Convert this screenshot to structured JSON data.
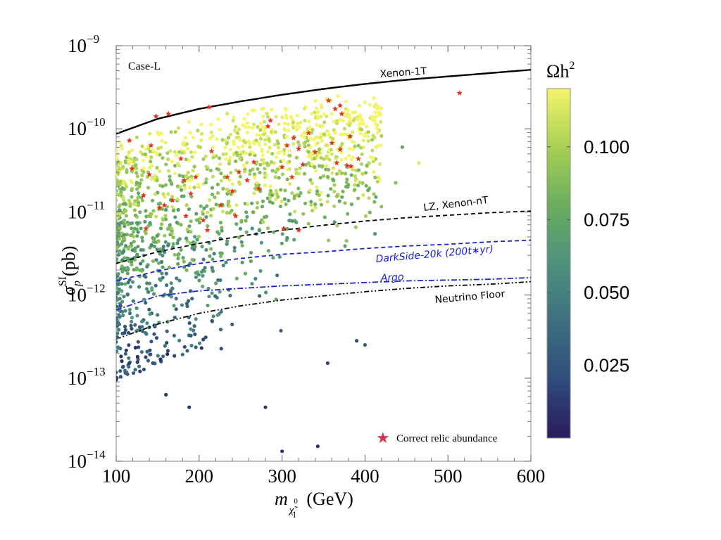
{
  "chart_data": {
    "type": "scatter",
    "panel_label": "Case-L",
    "xlabel": {
      "base": "m",
      "sub": "χ̃",
      "sub_sup": "0",
      "sub_idx": "1",
      "unit": "(GeV)"
    },
    "ylabel": {
      "base": "σ",
      "sub": "p",
      "sup": "SI",
      "unit": "(pb)"
    },
    "xlim": [
      100,
      600
    ],
    "ylim_log10": [
      -14,
      -9
    ],
    "x_ticks": [
      100,
      200,
      300,
      400,
      500,
      600
    ],
    "y_ticks": [
      {
        "exp": -9,
        "base": "10",
        "label": "−9"
      },
      {
        "exp": -10,
        "base": "10",
        "label": "−10"
      },
      {
        "exp": -11,
        "base": "10",
        "label": "−11"
      },
      {
        "exp": -12,
        "base": "10",
        "label": "−12"
      },
      {
        "exp": -13,
        "base": "10",
        "label": "−13"
      },
      {
        "exp": -14,
        "base": "10",
        "label": "−14"
      }
    ],
    "colorbar": {
      "title": "Ωh",
      "title_sup": "2",
      "range": [
        0,
        0.12
      ],
      "ticks": [
        {
          "v": 0.1,
          "label": "0.100"
        },
        {
          "v": 0.075,
          "label": "0.075"
        },
        {
          "v": 0.05,
          "label": "0.050"
        },
        {
          "v": 0.025,
          "label": "0.025"
        }
      ],
      "colormap": [
        "#2a1b5a",
        "#2f4d7a",
        "#3d6f80",
        "#4d917c",
        "#6bae5e",
        "#a6cf54",
        "#f5f56a"
      ]
    },
    "curves": [
      {
        "name": "Xenon-1T",
        "label": "Xenon-1T",
        "color": "#000000",
        "style": "solid",
        "x": [
          100,
          150,
          200,
          250,
          300,
          350,
          400,
          450,
          500,
          550,
          600
        ],
        "log10y": [
          -10.06,
          -9.88,
          -9.76,
          -9.67,
          -9.59,
          -9.52,
          -9.46,
          -9.41,
          -9.37,
          -9.33,
          -9.29
        ]
      },
      {
        "name": "LZ, Xenon-nT",
        "label": "LZ, Xenon-nT",
        "color": "#000000",
        "style": "dashed",
        "x": [
          100,
          150,
          200,
          250,
          300,
          350,
          400,
          450,
          500,
          550,
          600
        ],
        "log10y": [
          -11.62,
          -11.48,
          -11.38,
          -11.29,
          -11.22,
          -11.16,
          -11.11,
          -11.07,
          -11.04,
          -11.01,
          -10.99
        ]
      },
      {
        "name": "DarkSide-20k",
        "label": "DarkSide-20k (200t∗yr)",
        "color": "#1a22d0",
        "style": "dashed",
        "x": [
          100,
          150,
          200,
          250,
          300,
          350,
          400,
          450,
          500,
          550,
          600
        ],
        "log10y": [
          -11.83,
          -11.71,
          -11.62,
          -11.56,
          -11.51,
          -11.48,
          -11.44,
          -11.41,
          -11.39,
          -11.36,
          -11.34
        ]
      },
      {
        "name": "Argo",
        "label": "Argo",
        "color": "#1a22d0",
        "style": "dashdot",
        "x": [
          100,
          150,
          200,
          250,
          300,
          350,
          400,
          450,
          500,
          550,
          600
        ],
        "log10y": [
          -12.18,
          -12.01,
          -11.95,
          -11.92,
          -11.89,
          -11.87,
          -11.85,
          -11.83,
          -11.82,
          -11.81,
          -11.79
        ]
      },
      {
        "name": "Neutrino Floor",
        "label": "Neutrino Floor",
        "color": "#000000",
        "style": "dashdotdot",
        "x": [
          100,
          150,
          200,
          250,
          300,
          350,
          400,
          450,
          500,
          550,
          600
        ],
        "log10y": [
          -12.53,
          -12.35,
          -12.22,
          -12.13,
          -12.06,
          -12.01,
          -11.96,
          -11.92,
          -11.89,
          -11.87,
          -11.84
        ]
      }
    ],
    "scatter_generator": {
      "count": 1500,
      "seed": 7,
      "x_range": [
        100,
        420
      ],
      "note": "dense parameter-scan points colored by relic density"
    },
    "scatter_extra_points": [
      {
        "x": 343,
        "log10y": -13.82,
        "omega": 0.01
      },
      {
        "x": 300,
        "log10y": -13.88,
        "omega": 0.01
      },
      {
        "x": 188,
        "log10y": -13.35,
        "omega": 0.01
      },
      {
        "x": 160,
        "log10y": -13.2,
        "omega": 0.012
      },
      {
        "x": 280,
        "log10y": -13.35,
        "omega": 0.01
      },
      {
        "x": 465,
        "log10y": -10.41,
        "omega": 0.115
      },
      {
        "x": 445,
        "log10y": -10.22,
        "omega": 0.07
      },
      {
        "x": 437,
        "log10y": -10.65,
        "omega": 0.09
      },
      {
        "x": 400,
        "log10y": -12.6,
        "omega": 0.03
      },
      {
        "x": 390,
        "log10y": -12.55,
        "omega": 0.02
      },
      {
        "x": 355,
        "log10y": -12.82,
        "omega": 0.02
      }
    ],
    "correct_relic_points": [
      {
        "x": 514,
        "log10y": -9.57
      },
      {
        "x": 356,
        "log10y": -9.66
      },
      {
        "x": 364,
        "log10y": -9.76
      },
      {
        "x": 370,
        "log10y": -9.72
      },
      {
        "x": 372,
        "log10y": -9.82
      },
      {
        "x": 382,
        "log10y": -10.09
      },
      {
        "x": 370,
        "log10y": -10.25
      },
      {
        "x": 378,
        "log10y": -10.44
      },
      {
        "x": 383,
        "log10y": -10.45
      },
      {
        "x": 392,
        "log10y": -10.36
      },
      {
        "x": 360,
        "log10y": -10.17
      },
      {
        "x": 332,
        "log10y": -10.05
      },
      {
        "x": 314,
        "log10y": -10.11
      },
      {
        "x": 320,
        "log10y": -10.24
      },
      {
        "x": 306,
        "log10y": -10.2
      },
      {
        "x": 325,
        "log10y": -10.43
      },
      {
        "x": 312,
        "log10y": -10.58
      },
      {
        "x": 300,
        "log10y": -10.46
      },
      {
        "x": 286,
        "log10y": -9.9
      },
      {
        "x": 283,
        "log10y": -9.97
      },
      {
        "x": 266,
        "log10y": -10.4
      },
      {
        "x": 258,
        "log10y": -10.62
      },
      {
        "x": 234,
        "log10y": -10.58
      },
      {
        "x": 215,
        "log10y": -10.27
      },
      {
        "x": 212,
        "log10y": -9.74
      },
      {
        "x": 196,
        "log10y": -10.58
      },
      {
        "x": 190,
        "log10y": -10.78
      },
      {
        "x": 178,
        "log10y": -10.36
      },
      {
        "x": 168,
        "log10y": -10.86
      },
      {
        "x": 158,
        "log10y": -10.92
      },
      {
        "x": 142,
        "log10y": -10.2
      },
      {
        "x": 140,
        "log10y": -10.55
      },
      {
        "x": 133,
        "log10y": -10.8
      },
      {
        "x": 119,
        "log10y": -10.48
      },
      {
        "x": 116,
        "log10y": -10.14
      },
      {
        "x": 148,
        "log10y": -9.85
      },
      {
        "x": 152,
        "log10y": -10.95
      },
      {
        "x": 163,
        "log10y": -9.82
      },
      {
        "x": 182,
        "log10y": -10.62
      },
      {
        "x": 205,
        "log10y": -11.1
      },
      {
        "x": 226,
        "log10y": -10.92
      },
      {
        "x": 248,
        "log10y": -10.52
      },
      {
        "x": 272,
        "log10y": -10.72
      },
      {
        "x": 340,
        "log10y": -10.28
      },
      {
        "x": 366,
        "log10y": -10.41
      },
      {
        "x": 244,
        "log10y": -11.05
      },
      {
        "x": 210,
        "log10y": -11.22
      },
      {
        "x": 320,
        "log10y": -11.22
      },
      {
        "x": 302,
        "log10y": -11.2
      },
      {
        "x": 184,
        "log10y": -11.05
      },
      {
        "x": 136,
        "log10y": -11.2
      },
      {
        "x": 240,
        "log10y": -10.75
      }
    ],
    "legend": {
      "symbol": "★",
      "label": "Correct relic abundance",
      "placement": "bottom-right"
    }
  }
}
